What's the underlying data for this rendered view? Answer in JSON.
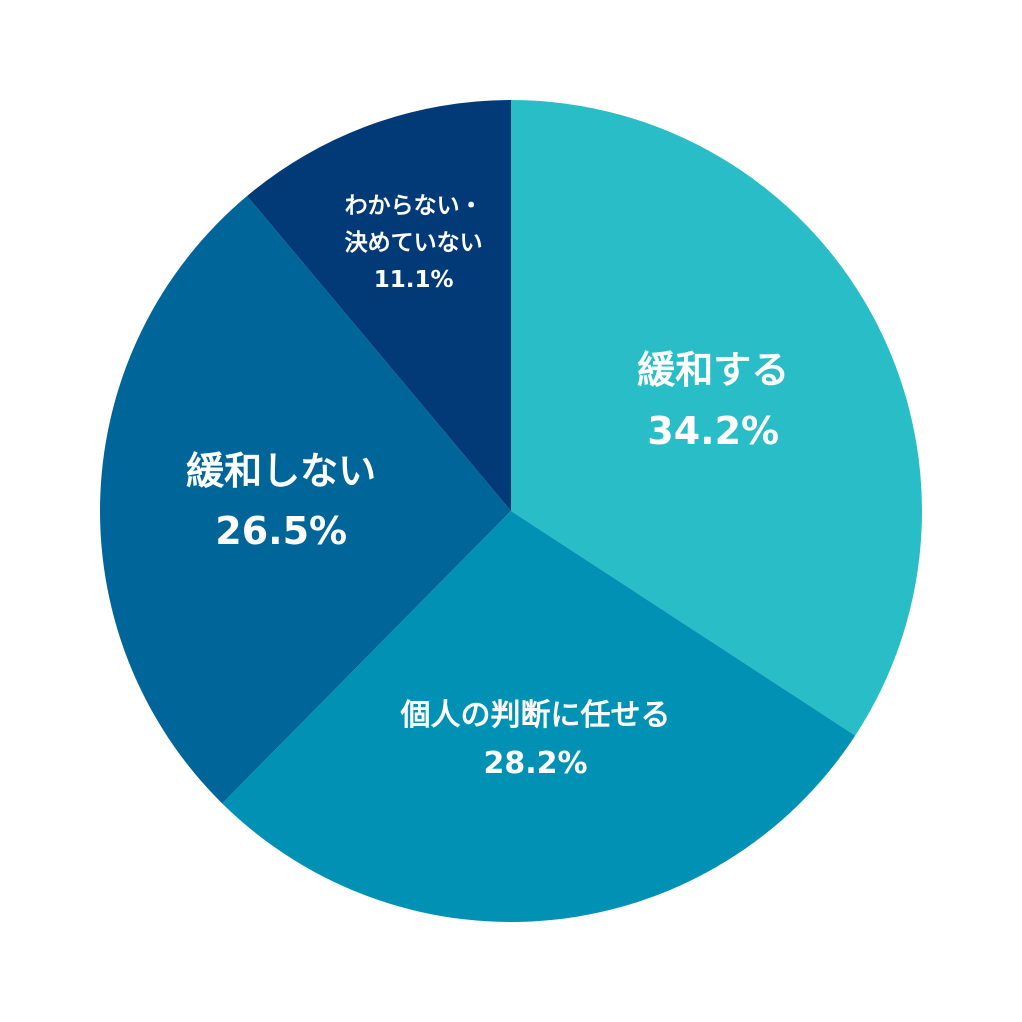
{
  "chart_data": {
    "type": "pie",
    "categories": [
      "緩和する",
      "個人の判断に任せる",
      "緩和しない",
      "わからない・\n決めていない"
    ],
    "values": [
      34.2,
      28.2,
      26.5,
      11.1
    ],
    "value_labels": [
      "34.2%",
      "28.2%",
      "26.5%",
      "11.1%"
    ],
    "colors": [
      "#29bdc8",
      "#0191b4",
      "#006699",
      "#023a78"
    ]
  }
}
